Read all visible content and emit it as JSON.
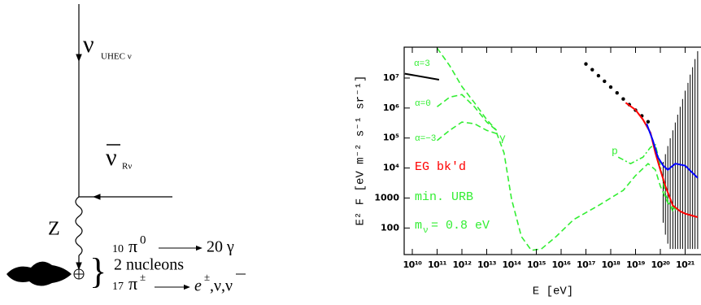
{
  "diagram": {
    "nu_uhec": "ν",
    "nu_uhec_sub": "UHEC ν",
    "nu_relic": "ν",
    "nu_relic_sub": "Rν",
    "boson": "Z",
    "pi0_count": "10",
    "pi0": "π",
    "pi0_sup": "0",
    "gamma": "20  γ",
    "nucleons": "2 nucleons",
    "pic_count": "17",
    "pic": "π",
    "pic_sup": "±",
    "leptons": "e",
    "leptons_sup": "±",
    "leptons_rest": ",ν,ν"
  },
  "chart_data": {
    "type": "line",
    "xlog": true,
    "ylog": true,
    "grid": false,
    "xlabel": "E  [eV]",
    "ylabel": "E² F  [eV m⁻² s⁻¹ sr⁻¹]",
    "xlim": [
      4700000000.0,
      4.36e+21
    ],
    "ylim": [
      13,
      107000000.0
    ],
    "xticks": [
      {
        "value": 10000000000.0,
        "label": "10¹⁰"
      },
      {
        "value": 100000000000.0,
        "label": "10¹¹"
      },
      {
        "value": 1000000000000.0,
        "label": "10¹²"
      },
      {
        "value": 10000000000000.0,
        "label": "10¹³"
      },
      {
        "value": 100000000000000.0,
        "label": "10¹⁴"
      },
      {
        "value": 1000000000000000.0,
        "label": "10¹⁵"
      },
      {
        "value": 1e+16,
        "label": "10¹⁶"
      },
      {
        "value": 1e+17,
        "label": "10¹⁷"
      },
      {
        "value": 1e+18,
        "label": "10¹⁸"
      },
      {
        "value": 1e+19,
        "label": "10¹⁹"
      },
      {
        "value": 1e+20,
        "label": "10²⁰"
      },
      {
        "value": 1e+21,
        "label": "10²¹"
      }
    ],
    "yticks": [
      100,
      1000,
      {
        "value": 10000.0,
        "label": "10⁴"
      },
      {
        "value": 100000.0,
        "label": "10⁵"
      },
      {
        "value": 1000000.0,
        "label": "10⁶"
      },
      {
        "value": 10000000.0,
        "label": "10⁷"
      }
    ],
    "annotations": [
      "α=3",
      "α=0",
      "α=−3",
      "γ",
      "p",
      "EG bk'd",
      "min. URB"
    ],
    "mass_label": {
      "symbol": "m",
      "subscript": "ν",
      "text": "= 0.8 eV"
    },
    "series": [
      {
        "color": "#000000",
        "style": "solid",
        "x": [
          5000000000.0,
          120000000000.0
        ],
        "values": [
          14000000.0,
          8800000.0
        ]
      },
      {
        "color": "#000000",
        "style": "dots",
        "x": [
          1e+17,
          1.8e+17,
          3.2e+17,
          5.6e+17,
          1e+18,
          1.8e+18,
          3.2e+18,
          5.6e+18,
          1e+19,
          1.8e+19,
          3.2e+19
        ],
        "values": [
          29500000.0,
          19000000.0,
          12000000.0,
          7800000.0,
          5000000.0,
          3200000.0,
          2000000.0,
          1300000.0,
          850000.0,
          550000.0,
          350000.0
        ]
      },
      {
        "color": "#000000",
        "style": "band",
        "x": [
          1.3e+20,
          1.6e+20,
          2e+20,
          2.5e+20,
          3.2e+20,
          4e+20,
          5e+20,
          6.3e+20,
          7.9e+20,
          1e+21,
          1.3e+21,
          1.6e+21,
          2e+21,
          2.5e+21,
          3.2e+21
        ],
        "values": [
          16000.0,
          29000.0,
          54000.0,
          98000.0,
          180000.0,
          330000.0,
          600000.0,
          1100000.0,
          2000000.0,
          3800000.0,
          6900000.0,
          13000000.0,
          23000000.0,
          43000000.0,
          79000000.0
        ],
        "lower": [
          150,
          60,
          30,
          20,
          20,
          20,
          20,
          20,
          20,
          20,
          20,
          20,
          20,
          20,
          20
        ]
      },
      {
        "color": "#33ee33",
        "style": "dashed",
        "x": [
          100000000000.0,
          320000000000.0,
          1000000000000.0,
          3200000000000.0,
          10000000000000.0,
          25000000000000.0
        ],
        "values": [
          100000000.0,
          26000000.0,
          5200000.0,
          1500000.0,
          410000.0,
          180000.0
        ]
      },
      {
        "color": "#33ee33",
        "style": "dashed",
        "x": [
          100000000000.0,
          320000000000.0,
          1000000000000.0,
          3200000000000.0,
          10000000000000.0,
          25000000000000.0
        ],
        "values": [
          1100000.0,
          2300000.0,
          2800000.0,
          1100000.0,
          340000.0,
          180000.0
        ]
      },
      {
        "color": "#33ee33",
        "style": "dashed",
        "x": [
          100000000000.0,
          320000000000.0,
          1000000000000.0,
          3200000000000.0,
          10000000000000.0,
          25000000000000.0
        ],
        "values": [
          83000.0,
          180000.0,
          340000.0,
          300000.0,
          180000.0,
          140000.0
        ]
      },
      {
        "color": "#33ee33",
        "style": "dashed",
        "x": [
          25000000000000.0,
          50000000000000.0,
          100000000000000.0,
          250000000000000.0,
          630000000000000.0,
          1600000000000000.0,
          6300000000000000.0,
          3.2e+16,
          3.2e+17,
          3.2e+18,
          1e+19,
          3.2e+19,
          6.3e+19,
          1e+20,
          2e+20,
          5e+20
        ],
        "values": [
          150000.0,
          32000.0,
          930,
          52,
          18,
          20,
          52,
          190,
          560,
          1800,
          5600,
          14000.0,
          8700,
          2500,
          680,
          360
        ]
      },
      {
        "color": "#33ee33",
        "style": "dashdot",
        "x": [
          2e+18,
          6.3e+18,
          2e+19,
          4e+19,
          6.3e+19,
          1e+20,
          1.6e+20,
          3.2e+20
        ],
        "values": [
          23000.0,
          14000.0,
          23000.0,
          49000.0,
          60000.0,
          12000.0,
          1300,
          360
        ]
      },
      {
        "color": "#ff0000",
        "style": "solid",
        "x": [
          4e+18,
          1e+19,
          2e+19,
          4e+19,
          6.3e+19,
          1e+20,
          1.6e+20,
          3.2e+20,
          6.3e+20,
          1e+21,
          3.2e+21
        ],
        "values": [
          1500000.0,
          870000.0,
          410000.0,
          150000.0,
          32000.0,
          8700,
          2500,
          560,
          360,
          300,
          230
        ]
      },
      {
        "color": "#0000ff",
        "style": "solid",
        "x": [
          2.8e+19,
          5e+19,
          7.9e+19,
          1.3e+20,
          2e+20,
          4e+20,
          1e+21,
          3.2e+21
        ],
        "values": [
          300000.0,
          83000.0,
          23000.0,
          12000.0,
          8700,
          14000.0,
          12000.0,
          4700
        ]
      }
    ]
  }
}
